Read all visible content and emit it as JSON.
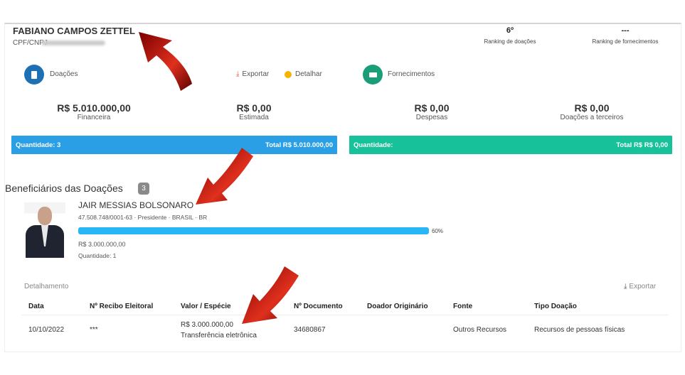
{
  "header": {
    "name": "FABIANO CAMPOS ZETTEL",
    "cpf_label": "CPF/CNPJ",
    "rankings": [
      {
        "value": "6º",
        "label": "Ranking de doações"
      },
      {
        "value": "---",
        "label": "Ranking de fornecimentos"
      }
    ]
  },
  "donations": {
    "title": "Doações",
    "icon": "calculator-icon",
    "color": "#1f6fb5",
    "export_label": "Exportar",
    "detail_label": "Detalhar",
    "values": [
      {
        "value": "R$ 5.010.000,00",
        "label": "Financeira"
      },
      {
        "value": "R$ 0,00",
        "label": "Estimada"
      }
    ],
    "bar": {
      "left": "Quantidade: 3",
      "right": "Total R$ 5.010.000,00",
      "color": "#2a9fe6"
    }
  },
  "supplies": {
    "title": "Fornecimentos",
    "icon": "money-icon",
    "color": "#1a9e7a",
    "values": [
      {
        "value": "R$ 0,00",
        "label": "Despesas"
      },
      {
        "value": "R$ 0,00",
        "label": "Doações a terceiros"
      }
    ],
    "bar": {
      "left": "Quantidade:",
      "right": "Total R$ R$ 0,00",
      "color": "#17c29a"
    }
  },
  "beneficiaries": {
    "title": "Beneficiários das Doações",
    "count": "3",
    "item": {
      "name": "JAIR MESSIAS BOLSONARO",
      "details": "47.508.748/0001-63 · Presidente · BRASIL · BR",
      "percent": 60,
      "percent_label": "60%",
      "amount": "R$ 3.000.000,00",
      "quantity": "Quantidade: 1"
    }
  },
  "detail": {
    "title": "Detalhamento",
    "export_label": "Exportar",
    "columns": [
      "Data",
      "Nº Recibo Eleitoral",
      "Valor / Espécie",
      "Nº Documento",
      "Doador Originário",
      "Fonte",
      "Tipo Doação"
    ],
    "rows": [
      {
        "date": "10/10/2022",
        "receipt": "***",
        "value": "R$ 3.000.000,00",
        "species": "Transferência eletrônica",
        "document": "34680867",
        "origin": "",
        "source": "Outros Recursos",
        "type": "Recursos de pessoas físicas"
      }
    ]
  }
}
